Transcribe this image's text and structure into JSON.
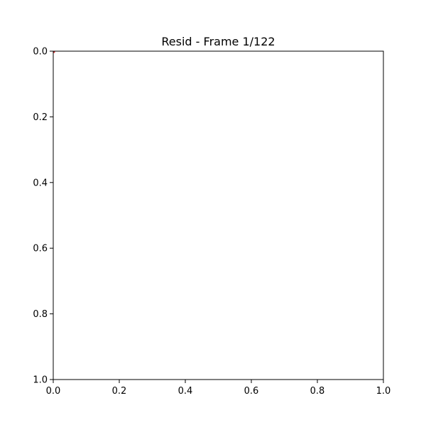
{
  "chart_data": {
    "type": "scatter",
    "title": "Resid - Frame 1/122",
    "xlabel": "",
    "ylabel": "",
    "xlim": [
      0.0,
      1.0
    ],
    "ylim": [
      1.0,
      0.0
    ],
    "y_inverted": true,
    "grid": false,
    "x_ticks": [
      "0.0",
      "0.2",
      "0.4",
      "0.6",
      "0.8",
      "1.0"
    ],
    "y_ticks": [
      "0.0",
      "0.2",
      "0.4",
      "0.6",
      "0.8",
      "1.0"
    ],
    "series": [
      {
        "color": "#d62728",
        "points": [
          {
            "x": 0.0,
            "y": 0.0
          }
        ]
      }
    ]
  }
}
